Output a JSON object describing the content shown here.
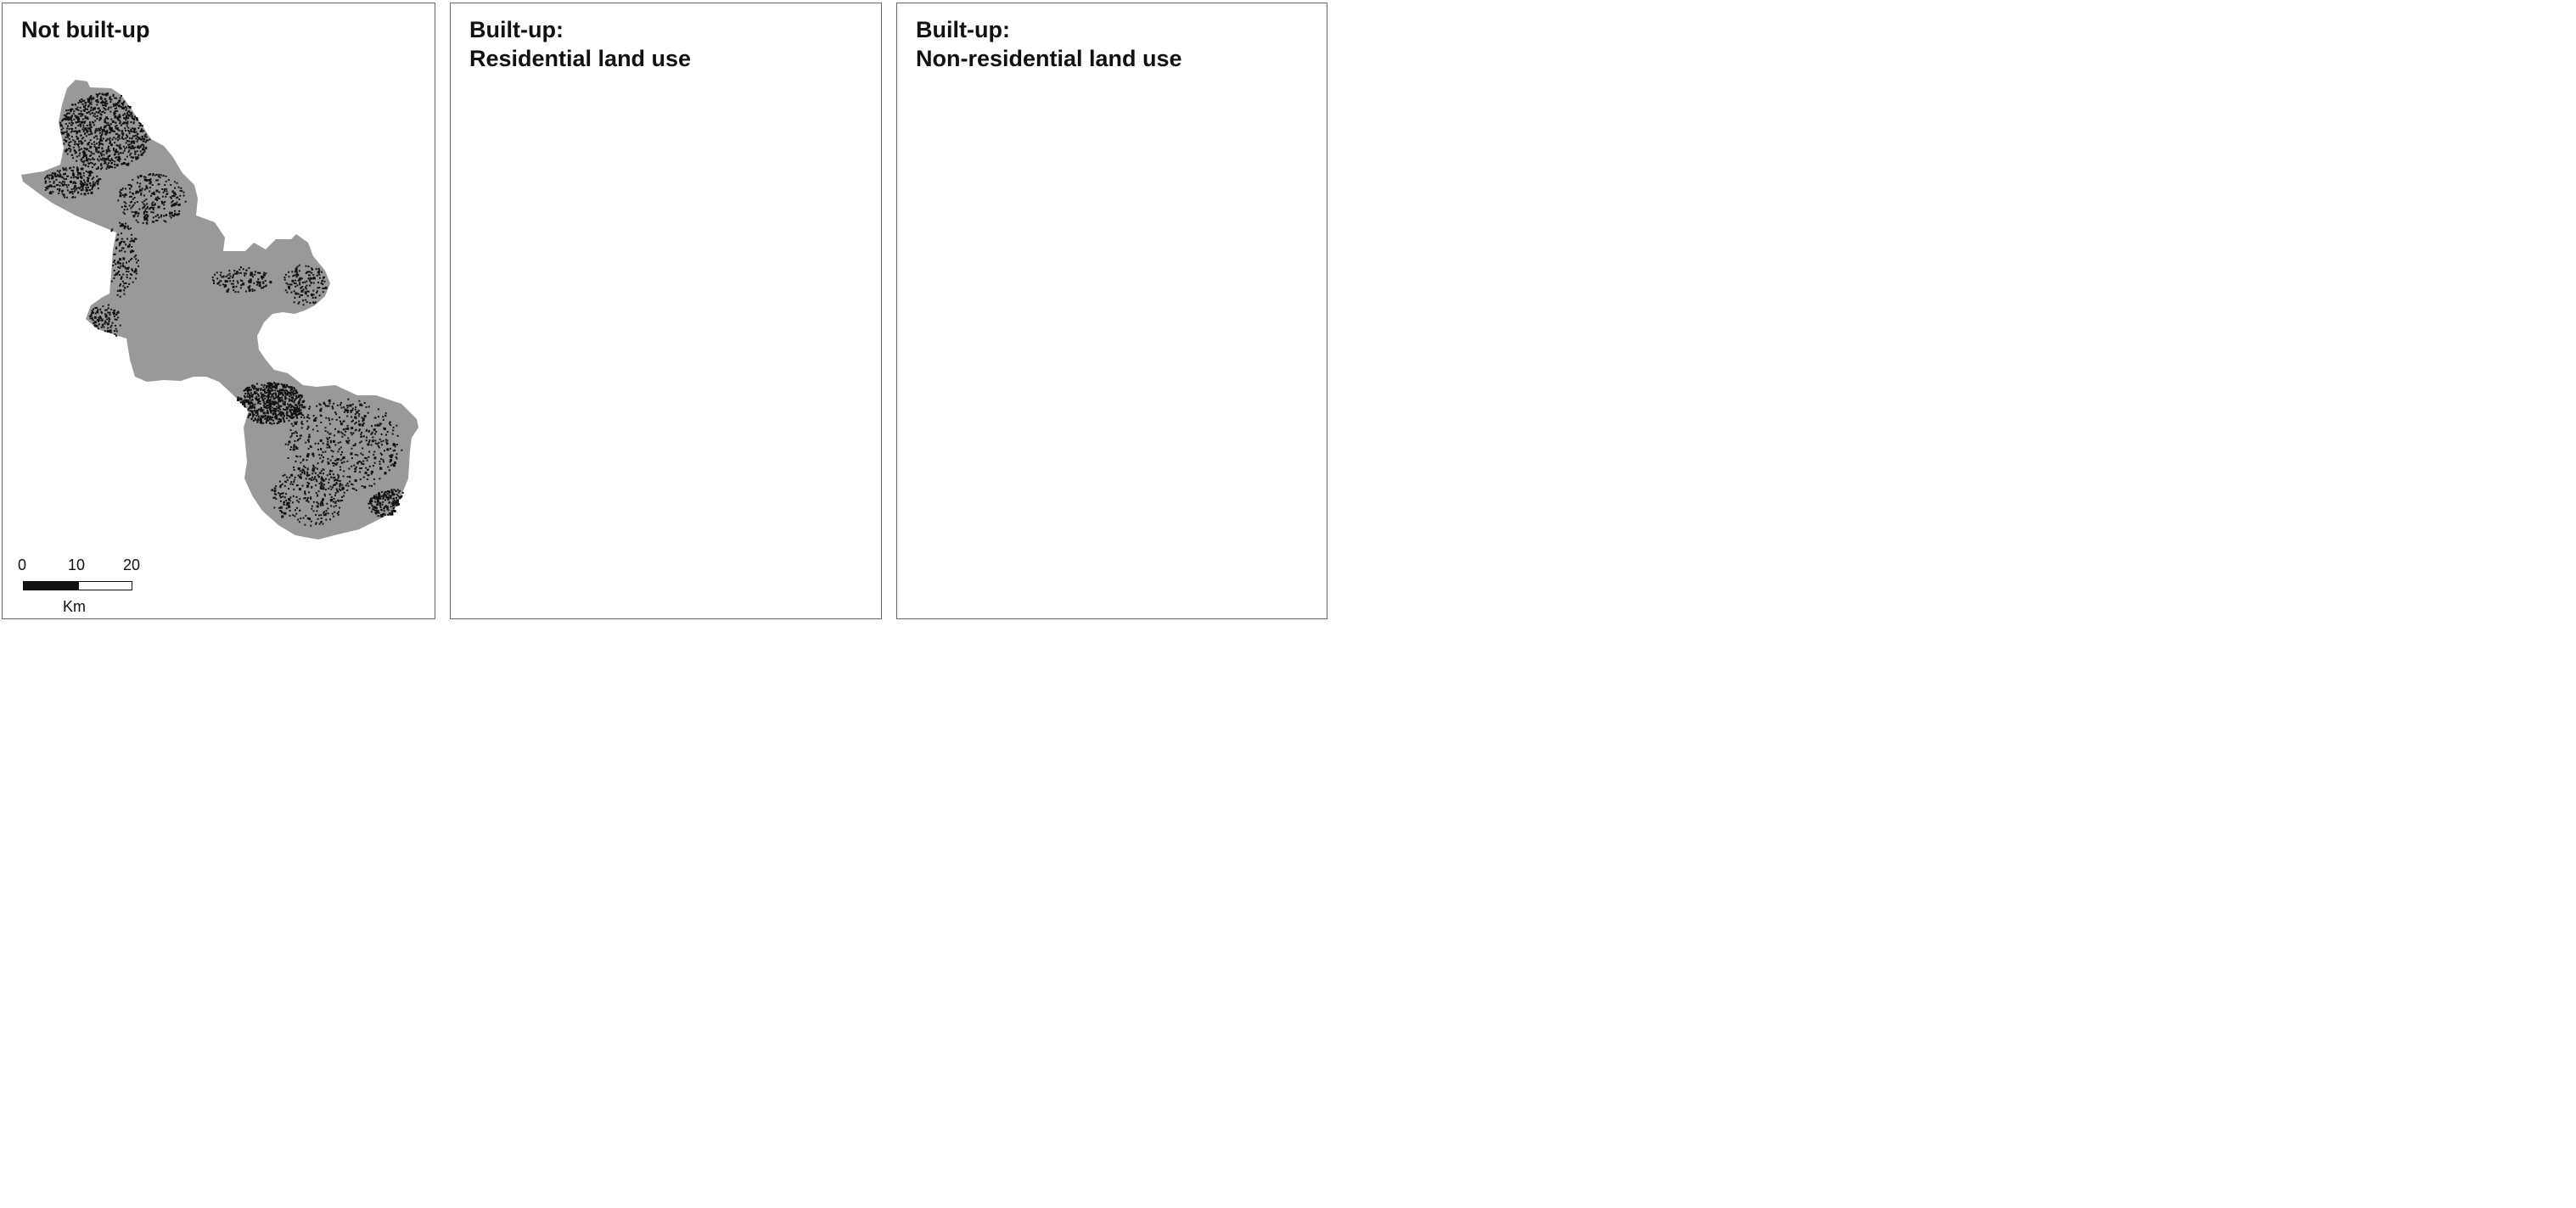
{
  "colors": {
    "land": "#999999",
    "mark": "#111111",
    "frame": "#6b6b6b"
  },
  "panels": [
    {
      "title_line1": "Not built-up",
      "title_line2": ""
    },
    {
      "title_line1": "Built-up:",
      "title_line2": "Residential land use"
    },
    {
      "title_line1": "Built-up:",
      "title_line2": "Non-residential land use"
    }
  ],
  "scale": {
    "t0": "0",
    "t1": "10",
    "t2": "20",
    "unit": "Km"
  }
}
